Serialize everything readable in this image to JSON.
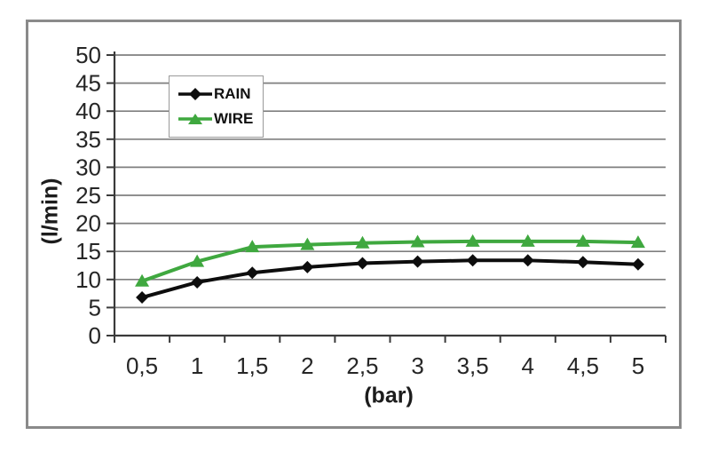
{
  "chart_data": {
    "type": "line",
    "title": "",
    "xlabel": "(bar)",
    "ylabel": "(l/min)",
    "x_values": [
      0.5,
      1,
      1.5,
      2,
      2.5,
      3,
      3.5,
      4,
      4.5,
      5
    ],
    "categories": [
      "0,5",
      "1",
      "1,5",
      "2",
      "2,5",
      "3",
      "3,5",
      "4",
      "4,5",
      "5"
    ],
    "series": [
      {
        "name": "RAIN",
        "color": "#0d0d0d",
        "marker": "diamond",
        "values": [
          6.8,
          9.5,
          11.2,
          12.2,
          12.9,
          13.2,
          13.4,
          13.4,
          13.1,
          12.7
        ]
      },
      {
        "name": "WIRE",
        "color": "#3fa83f",
        "marker": "triangle",
        "values": [
          9.7,
          13.2,
          15.8,
          16.2,
          16.5,
          16.7,
          16.8,
          16.8,
          16.8,
          16.6
        ]
      }
    ],
    "ylim": [
      0,
      50
    ],
    "ytick_step": 5,
    "ytick_labels": [
      "0",
      "5",
      "10",
      "15",
      "20",
      "25",
      "30",
      "35",
      "40",
      "45",
      "50"
    ],
    "grid": true,
    "legend": {
      "position": "top-left-inside",
      "entries": [
        "RAIN",
        "WIRE"
      ]
    },
    "colors": {
      "grid": "#7f7f7f",
      "axis": "#3a3a3a",
      "frame_border": "#8a8a8a",
      "tick_text": "#262626"
    }
  }
}
